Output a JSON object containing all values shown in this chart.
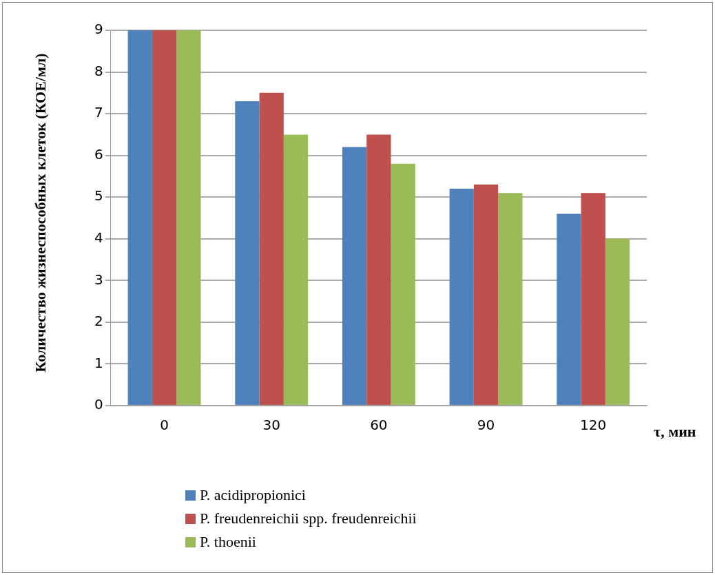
{
  "chart_data": {
    "type": "bar",
    "xlabel": "τ, мин",
    "ylabel": "Количество жизнеспособных клеток (КОЕ/мл)",
    "categories": [
      "0",
      "30",
      "60",
      "90",
      "120"
    ],
    "series": [
      {
        "name": "P. acidipropionici",
        "color": "#4f81bd",
        "values": [
          9,
          7.3,
          6.2,
          5.2,
          4.6
        ]
      },
      {
        "name": "P. freudenreichii spp. freudenreichii",
        "color": "#c0504d",
        "values": [
          9,
          7.5,
          6.5,
          5.3,
          5.1
        ]
      },
      {
        "name": "P. thoenii",
        "color": "#9bbb59",
        "values": [
          9,
          6.5,
          5.8,
          5.1,
          4.0
        ]
      }
    ],
    "ylim": [
      0,
      9
    ],
    "yticks": [
      0,
      1,
      2,
      3,
      4,
      5,
      6,
      7,
      8,
      9
    ],
    "grid": "y",
    "legend": "bottom"
  }
}
